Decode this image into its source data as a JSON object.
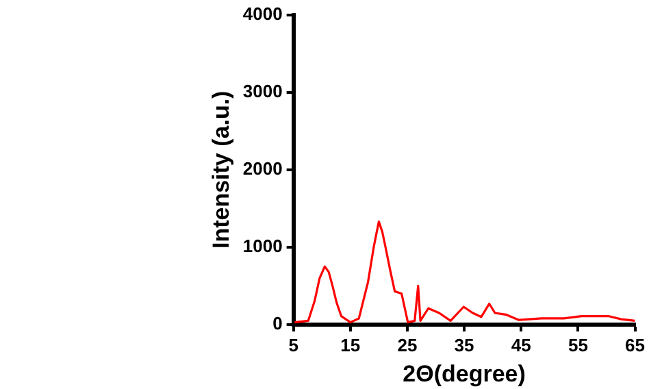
{
  "chart_data": {
    "type": "line",
    "xlabel": "2Θ(degree)",
    "ylabel": "Intensity (a.u.)",
    "xlim": [
      5,
      65
    ],
    "xticks": [
      5,
      15,
      25,
      35,
      45,
      55,
      65
    ],
    "ylim": [
      0,
      4000
    ],
    "yticks": [
      0,
      1000,
      2000,
      3000,
      4000
    ],
    "grid": false,
    "legend": false,
    "marker": "none",
    "line_style": "solid",
    "series": [
      {
        "color": "#ff0000",
        "x": [
          5.2,
          7.6,
          8.7,
          9.6,
          10.5,
          11.2,
          11.9,
          12.6,
          13.4,
          15,
          16.5,
          18.1,
          19.1,
          20,
          20.6,
          21.2,
          22,
          22.8,
          24,
          25.1,
          26.3,
          26.9,
          27.3,
          28.7,
          30.6,
          32.6,
          34.9,
          36.5,
          38,
          39.4,
          40.4,
          42.3,
          44.6,
          48.6,
          52.5,
          55.6,
          60.3,
          62.6,
          65
        ],
        "values": [
          30,
          50,
          300,
          600,
          750,
          680,
          490,
          280,
          110,
          30,
          80,
          550,
          1000,
          1330,
          1200,
          990,
          700,
          430,
          400,
          30,
          50,
          500,
          50,
          210,
          150,
          50,
          230,
          150,
          100,
          270,
          150,
          130,
          60,
          80,
          80,
          110,
          110,
          70,
          50
        ]
      }
    ]
  }
}
